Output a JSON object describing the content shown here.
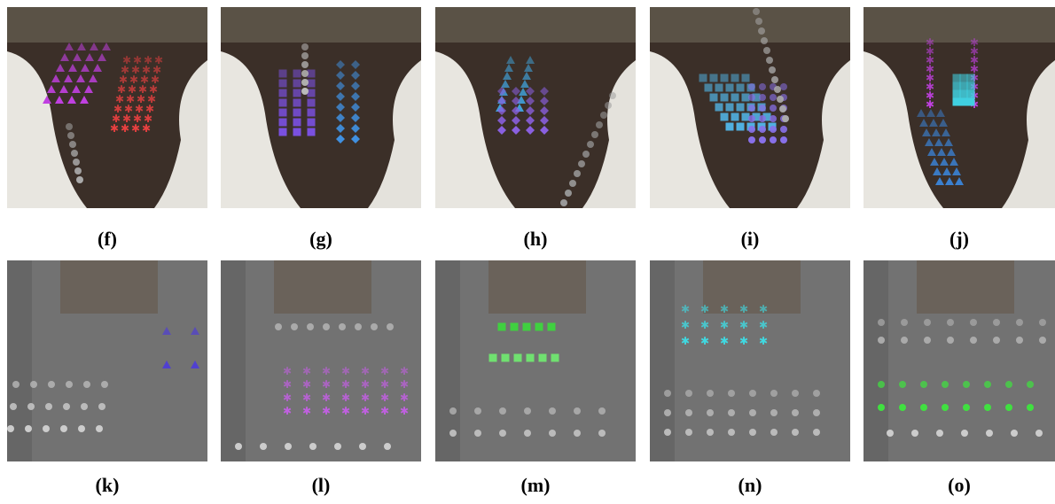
{
  "panels": [
    {
      "label": "(f)"
    },
    {
      "label": "(g)"
    },
    {
      "label": "(h)"
    },
    {
      "label": "(i)"
    },
    {
      "label": "(j)"
    },
    {
      "label": "(k)"
    },
    {
      "label": "(l)"
    },
    {
      "label": "(m)"
    },
    {
      "label": "(n)"
    },
    {
      "label": "(o)"
    }
  ]
}
